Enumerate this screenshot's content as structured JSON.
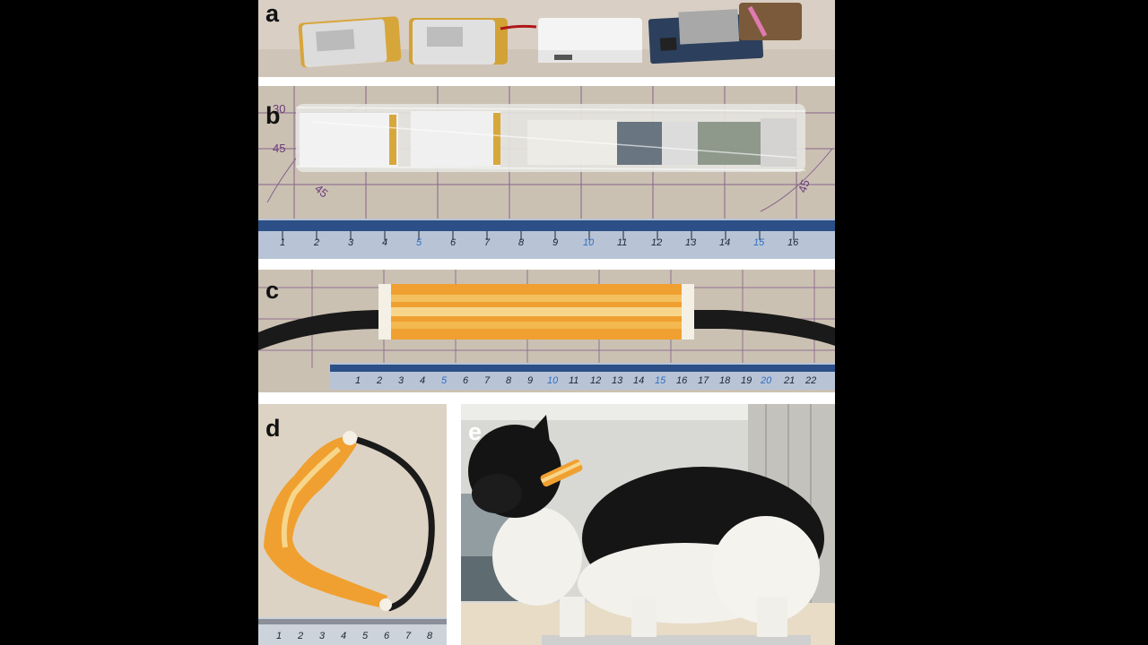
{
  "figure": {
    "panels": [
      {
        "id": "a",
        "label": "a"
      },
      {
        "id": "b",
        "label": "b"
      },
      {
        "id": "c",
        "label": "c"
      },
      {
        "id": "d",
        "label": "d"
      },
      {
        "id": "e",
        "label": "e"
      }
    ]
  },
  "rulers": {
    "b_numbers": [
      "1",
      "2",
      "3",
      "4",
      "5",
      "6",
      "7",
      "8",
      "9",
      "10",
      "11",
      "12",
      "13",
      "14",
      "15",
      "16"
    ],
    "c_numbers": [
      "1",
      "2",
      "3",
      "4",
      "5",
      "6",
      "7",
      "8",
      "9",
      "10",
      "11",
      "12",
      "13",
      "14",
      "15",
      "16",
      "17",
      "18",
      "19",
      "20",
      "21",
      "22"
    ],
    "d_numbers": [
      "1",
      "2",
      "3",
      "4",
      "5",
      "6",
      "7",
      "8"
    ],
    "mat_angles": [
      "30",
      "45",
      "45",
      "45"
    ]
  },
  "colors": {
    "background": "#000000",
    "figure_bg": "#ffffff",
    "mat": "#c9bfb2",
    "mat_lines": "#6b3d7a",
    "ruler": "#2b4f86",
    "knit_orange": "#f0a030",
    "knit_light": "#f7d68c",
    "strap": "#1a1a1a"
  }
}
